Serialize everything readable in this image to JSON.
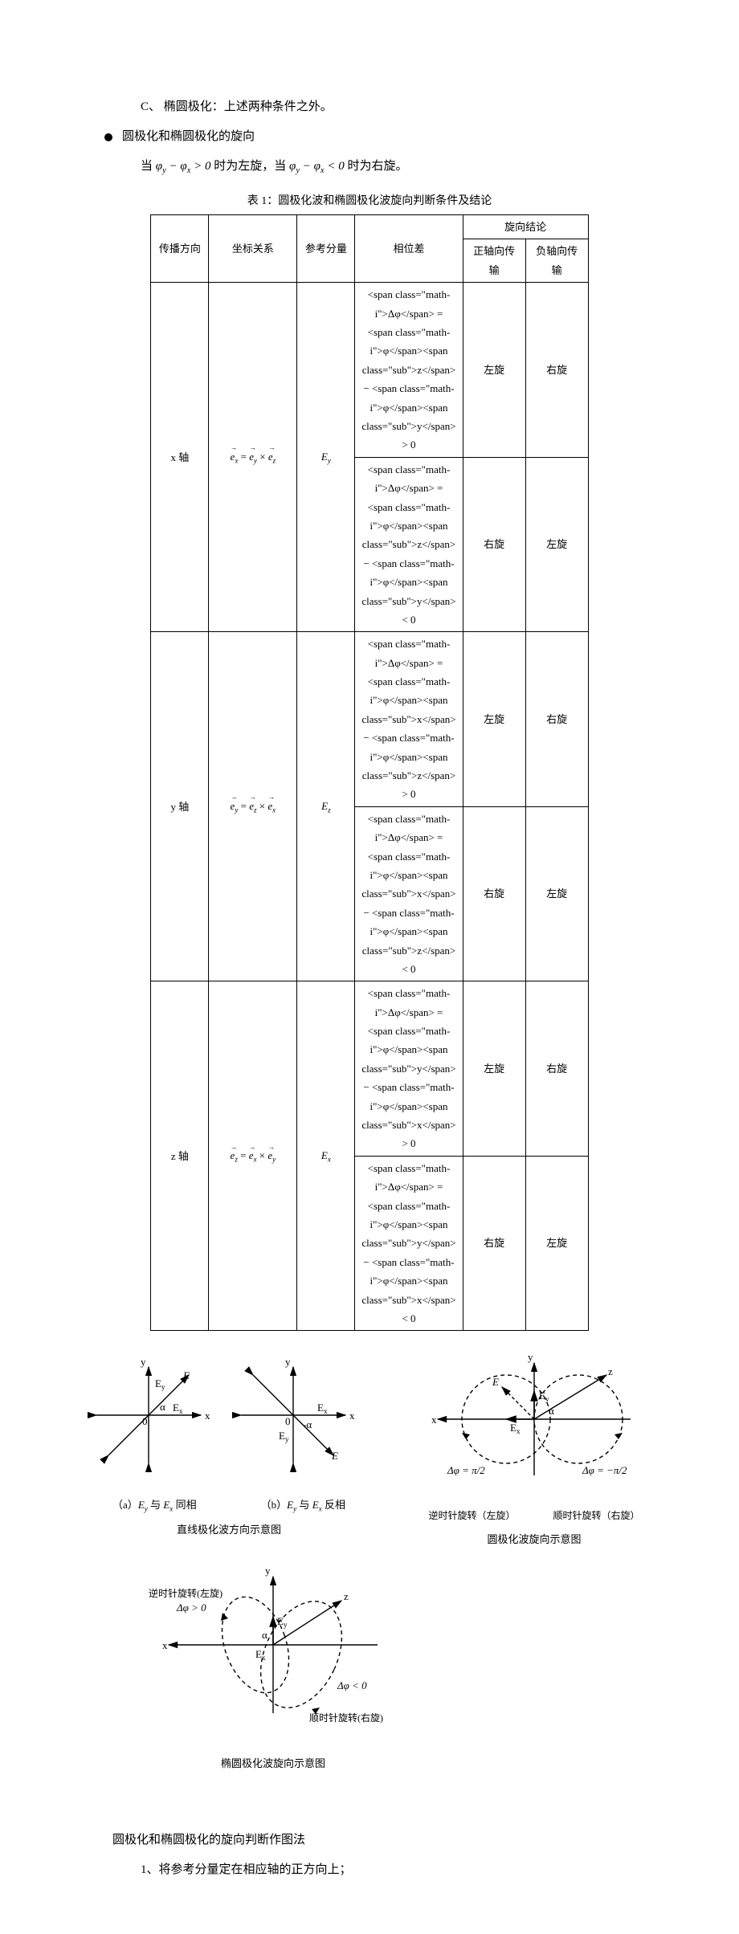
{
  "intro": {
    "item_c_label": "C、",
    "item_c_text": "椭圆极化：上述两种条件之外。",
    "bullet_text": "圆极化和椭圆极化的旋向",
    "when_prefix": "当 ",
    "when_cond1": "φ_y − φ_x > 0",
    "when_mid1": " 时为左旋，当 ",
    "when_cond2": "φ_y − φ_x < 0",
    "when_mid2": " 时为右旋。"
  },
  "table": {
    "title": "表 1：圆极化波和椭圆极化波旋向判断条件及结论",
    "headers": {
      "dir": "传播方向",
      "rel": "坐标关系",
      "ref": "参考分量",
      "phase": "相位差",
      "conclusion": "旋向结论",
      "pos_axis": "正轴向传输",
      "neg_axis": "负轴向传输"
    },
    "groups": [
      {
        "dir": "x 轴",
        "rel_lhs": "e_x",
        "rel_rhs1": "e_y",
        "rel_rhs2": "e_z",
        "ref": "E_y",
        "rows": [
          {
            "phase": "Δφ = φ_z − φ_y > 0",
            "pos": "左旋",
            "neg": "右旋"
          },
          {
            "phase": "Δφ = φ_z − φ_y < 0",
            "pos": "右旋",
            "neg": "左旋"
          }
        ]
      },
      {
        "dir": "y 轴",
        "rel_lhs": "e_y",
        "rel_rhs1": "e_z",
        "rel_rhs2": "e_x",
        "ref": "E_z",
        "rows": [
          {
            "phase": "Δφ = φ_x − φ_z > 0",
            "pos": "左旋",
            "neg": "右旋"
          },
          {
            "phase": "Δφ = φ_x − φ_z < 0",
            "pos": "右旋",
            "neg": "左旋"
          }
        ]
      },
      {
        "dir": "z 轴",
        "rel_lhs": "e_z",
        "rel_rhs1": "e_x",
        "rel_rhs2": "e_y",
        "ref": "E_x",
        "rows": [
          {
            "phase": "Δφ = φ_y − φ_x > 0",
            "pos": "左旋",
            "neg": "右旋"
          },
          {
            "phase": "Δφ = φ_y − φ_x < 0",
            "pos": "右旋",
            "neg": "左旋"
          }
        ]
      }
    ]
  },
  "diagrams": {
    "linear": {
      "a_label": "（a）E_y 与 E_x 同相",
      "b_label": "（b）E_y 与 E_x 反相",
      "caption": "直线极化波方向示意图",
      "labels": {
        "x": "x",
        "y": "y",
        "Ex": "E_x",
        "Ey": "E_y",
        "E": "E",
        "alpha": "α",
        "neg_alpha": "-α",
        "zero": "0"
      }
    },
    "circular": {
      "caption": "圆极化波旋向示意图",
      "left_label": "逆时针旋转（左旋）",
      "right_label": "顺时针旋转（右旋）",
      "dphi_pos": "Δφ = π/2",
      "dphi_neg": "Δφ = −π/2",
      "labels": {
        "x": "x",
        "y": "y",
        "z": "z",
        "Ex": "E_x",
        "Ey": "E_y",
        "E": "E",
        "alpha": "α"
      }
    },
    "elliptic": {
      "caption": "椭圆极化波旋向示意图",
      "ccw": "逆时针旋转(左旋)",
      "cw": "顺时针旋转(右旋)",
      "dphi_pos": "Δφ > 0",
      "dphi_neg": "Δφ < 0",
      "labels": {
        "x": "x",
        "y": "y",
        "z": "z",
        "Ex": "E_x",
        "Ey": "E_y",
        "alpha": "α"
      }
    }
  },
  "method": {
    "title": "圆极化和椭圆极化的旋向判断作图法",
    "item1": "1、将参考分量定在相应轴的正方向上；"
  },
  "style": {
    "stroke": "#000000",
    "dash": "5,4",
    "stroke_width": 1.4,
    "arrow_size": 8
  }
}
